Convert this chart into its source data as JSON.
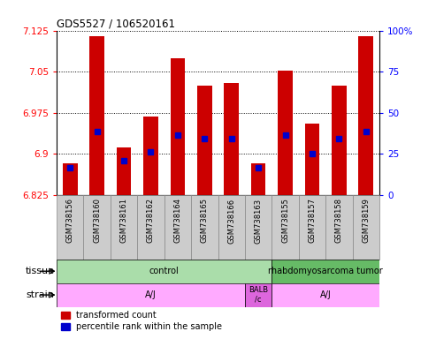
{
  "title": "GDS5527 / 106520161",
  "samples": [
    "GSM738156",
    "GSM738160",
    "GSM738161",
    "GSM738162",
    "GSM738164",
    "GSM738165",
    "GSM738166",
    "GSM738163",
    "GSM738155",
    "GSM738157",
    "GSM738158",
    "GSM738159"
  ],
  "bar_values": [
    6.882,
    7.115,
    6.912,
    6.968,
    7.075,
    7.025,
    7.03,
    6.882,
    7.052,
    6.955,
    7.025,
    7.115
  ],
  "percentile_values": [
    6.874,
    6.94,
    6.888,
    6.904,
    6.935,
    6.928,
    6.928,
    6.874,
    6.935,
    6.9,
    6.928,
    6.94
  ],
  "ymin": 6.825,
  "ymax": 7.125,
  "yticks": [
    6.825,
    6.9,
    6.975,
    7.05,
    7.125
  ],
  "ytick_labels": [
    "6.825",
    "6.9",
    "6.975",
    "7.05",
    "7.125"
  ],
  "right_yticks": [
    0,
    25,
    50,
    75,
    100
  ],
  "right_ytick_labels": [
    "0",
    "25",
    "50",
    "75",
    "100%"
  ],
  "bar_color": "#cc0000",
  "percentile_color": "#0000cc",
  "tissue_groups": [
    {
      "label": "control",
      "start": 0,
      "end": 8,
      "color": "#aaddaa"
    },
    {
      "label": "rhabdomyosarcoma tumor",
      "start": 8,
      "end": 12,
      "color": "#66bb66"
    }
  ],
  "strain_groups": [
    {
      "label": "A/J",
      "start": 0,
      "end": 7,
      "color": "#ffaaff"
    },
    {
      "label": "BALB\n/c",
      "start": 7,
      "end": 8,
      "color": "#dd66dd"
    },
    {
      "label": "A/J",
      "start": 8,
      "end": 12,
      "color": "#ffaaff"
    }
  ],
  "legend_red": "transformed count",
  "legend_blue": "percentile rank within the sample",
  "bar_width": 0.55,
  "sample_box_color": "#cccccc",
  "sample_box_edge": "#888888"
}
